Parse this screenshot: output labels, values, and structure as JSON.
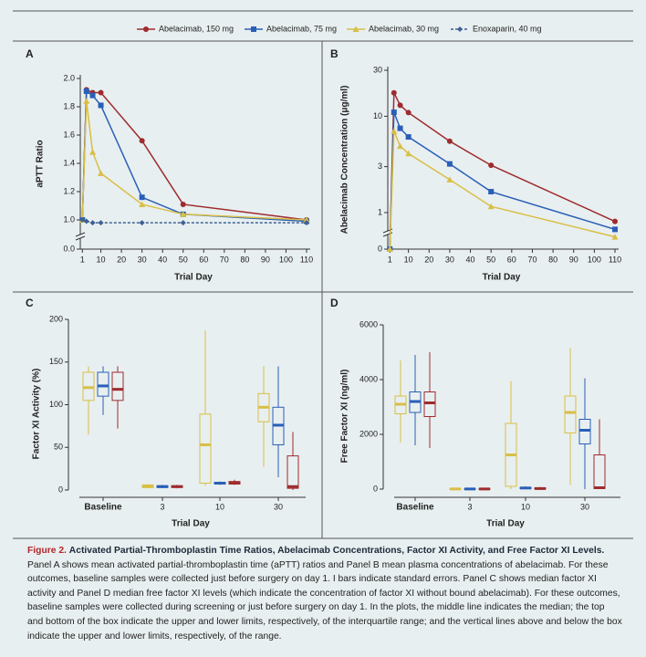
{
  "chart_data": [
    {
      "type": "line",
      "panel_label": "A",
      "y_label": "aPTT Ratio",
      "x_label": "Trial Day",
      "x": [
        1,
        3,
        6,
        10,
        30,
        50,
        110
      ],
      "xlim": [
        0,
        110
      ],
      "xticks": [
        1,
        10,
        20,
        30,
        40,
        50,
        60,
        70,
        80,
        90,
        100,
        110
      ],
      "ylim": [
        0,
        2.0
      ],
      "axis_break": true,
      "yticks": [
        {
          "value": 0,
          "label": "0.0"
        },
        {
          "value": 1.0,
          "label": "1.0"
        },
        {
          "value": 1.2,
          "label": "1.2"
        },
        {
          "value": 1.4,
          "label": "1.4"
        },
        {
          "value": 1.6,
          "label": "1.6"
        },
        {
          "value": 1.8,
          "label": "1.8"
        },
        {
          "value": 2.0,
          "label": "2.0"
        }
      ],
      "series": [
        {
          "name": "Abelacimab, 150 mg",
          "color": "#9e2b2e",
          "marker": "circle",
          "values": [
            1.0,
            1.92,
            1.9,
            1.9,
            1.56,
            1.11,
            1.0
          ]
        },
        {
          "name": "Abelacimab, 75 mg",
          "color": "#2a5fb8",
          "marker": "square",
          "values": [
            1.0,
            1.91,
            1.88,
            1.81,
            1.16,
            1.04,
            0.99
          ]
        },
        {
          "name": "Abelacimab, 30 mg",
          "color": "#d8bf45",
          "marker": "triangle",
          "values": [
            1.0,
            1.84,
            1.48,
            1.33,
            1.11,
            1.04,
            1.0
          ]
        },
        {
          "name": "Enoxaparin, 40 mg",
          "color": "#3d6194",
          "marker": "diamond",
          "dashed": true,
          "values": [
            1.0,
            0.99,
            0.98,
            0.98,
            0.98,
            0.98,
            0.98
          ]
        }
      ]
    },
    {
      "type": "line",
      "panel_label": "B",
      "y_label": "Abelacimab Concentration (μg/ml)",
      "x_label": "Trial Day",
      "x": [
        1,
        3,
        6,
        10,
        30,
        50,
        110
      ],
      "xlim": [
        0,
        110
      ],
      "xticks": [
        1,
        10,
        20,
        30,
        40,
        50,
        60,
        70,
        80,
        90,
        100,
        110
      ],
      "log_y": true,
      "axis_break": true,
      "ylim": [
        0,
        30
      ],
      "yticks": [
        0,
        1,
        3,
        10,
        30
      ],
      "series": [
        {
          "name": "Abelacimab, 150 mg",
          "color": "#9e2b2e",
          "marker": "circle",
          "values": [
            0,
            17.5,
            13,
            10.9,
            5.5,
            3.1,
            0.81
          ]
        },
        {
          "name": "Abelacimab, 75 mg",
          "color": "#2a5fb8",
          "marker": "square",
          "values": [
            0,
            11,
            7.5,
            6.1,
            3.2,
            1.65,
            0.67
          ]
        },
        {
          "name": "Abelacimab, 30 mg",
          "color": "#d8bf45",
          "marker": "triangle",
          "values": [
            0,
            7.0,
            4.9,
            4.1,
            2.2,
            1.16,
            0.56
          ]
        }
      ]
    },
    {
      "type": "box",
      "panel_label": "C",
      "y_label": "Factor XI Activity (%)",
      "x_label": "Trial Day",
      "categories": [
        "Baseline",
        "3",
        "10",
        "30"
      ],
      "ylim": [
        0,
        200
      ],
      "yticks": [
        0,
        50,
        100,
        150,
        200
      ],
      "series": [
        {
          "name": "Abelacimab, 30 mg",
          "color": "#d8bf45",
          "whislo": [
            65,
            2,
            5,
            27
          ],
          "q1": [
            105,
            3,
            8,
            80
          ],
          "median": [
            120,
            4,
            53,
            97
          ],
          "q3": [
            138,
            6,
            89,
            113
          ],
          "whishi": [
            145,
            7,
            187,
            145
          ]
        },
        {
          "name": "Abelacimab, 75 mg",
          "color": "#2a5fb8",
          "whislo": [
            88,
            2,
            6,
            15
          ],
          "q1": [
            110,
            3,
            7,
            53
          ],
          "median": [
            122,
            4,
            8,
            76
          ],
          "q3": [
            138,
            5,
            9,
            97
          ],
          "whishi": [
            145,
            6,
            10,
            145
          ]
        },
        {
          "name": "Abelacimab, 150 mg",
          "color": "#9e2b2e",
          "whislo": [
            72,
            2,
            6,
            0
          ],
          "q1": [
            105,
            3,
            7,
            2
          ],
          "median": [
            118,
            4,
            8,
            4
          ],
          "q3": [
            138,
            5,
            10,
            40
          ],
          "whishi": [
            145,
            6,
            12,
            68
          ]
        }
      ]
    },
    {
      "type": "box",
      "panel_label": "D",
      "y_label": "Free Factor XI (ng/ml)",
      "x_label": "Trial Day",
      "categories": [
        "Baseline",
        "3",
        "10",
        "30"
      ],
      "ylim": [
        0,
        6000
      ],
      "yticks": [
        0,
        2000,
        4000,
        6000
      ],
      "series": [
        {
          "name": "Abelacimab, 30 mg",
          "color": "#d8bf45",
          "whislo": [
            1700,
            0,
            0,
            150
          ],
          "q1": [
            2750,
            0,
            100,
            2050
          ],
          "median": [
            3100,
            5,
            1250,
            2800
          ],
          "q3": [
            3400,
            10,
            2400,
            3400
          ],
          "whishi": [
            4700,
            20,
            3950,
            5150
          ]
        },
        {
          "name": "Abelacimab, 75 mg",
          "color": "#2a5fb8",
          "whislo": [
            1600,
            0,
            0,
            0
          ],
          "q1": [
            2800,
            0,
            20,
            1650
          ],
          "median": [
            3200,
            5,
            40,
            2150
          ],
          "q3": [
            3550,
            10,
            60,
            2550
          ],
          "whishi": [
            4900,
            20,
            100,
            4050
          ]
        },
        {
          "name": "Abelacimab, 150 mg",
          "color": "#9e2b2e",
          "whislo": [
            1500,
            0,
            0,
            0
          ],
          "q1": [
            2650,
            0,
            10,
            20
          ],
          "median": [
            3150,
            5,
            20,
            50
          ],
          "q3": [
            3550,
            10,
            40,
            1250
          ],
          "whishi": [
            5000,
            20,
            80,
            2550
          ]
        }
      ]
    }
  ],
  "caption": {
    "label": "Figure 2.",
    "title": "Activated Partial-Thromboplastin Time Ratios, Abelacimab Concentrations, Factor XI Activity, and Free Factor XI Levels.",
    "text": "Panel A shows mean activated partial-thromboplastin time (aPTT) ratios and Panel B mean plasma concentrations of abelacimab. For these outcomes, baseline samples were collected just before surgery on day 1. I bars indicate standard errors. Panel C shows median factor XI activity and Panel D median free factor XI levels (which indicate the concentration of factor XI without bound abelacimab). For these outcomes, baseline samples were collected during screening or just before surgery on day 1. In the plots, the middle line indicates the median; the top and bottom of the box indicate the upper and lower limits, respectively, of the interquartile range; and the vertical lines above and below the box indicate the upper and lower limits, respectively, of the range."
  }
}
